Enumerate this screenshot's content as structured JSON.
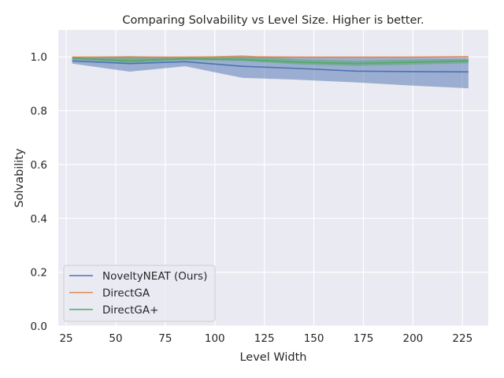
{
  "chart_data": {
    "type": "line",
    "title": "Comparing Solvability  vs Level Size. Higher is better.",
    "xlabel": "Level Width",
    "ylabel": "Solvability",
    "xlim": [
      21,
      238
    ],
    "ylim": [
      0,
      1.1
    ],
    "xticks": [
      25,
      50,
      75,
      100,
      125,
      150,
      175,
      200,
      225
    ],
    "yticks": [
      0.0,
      0.2,
      0.4,
      0.6,
      0.8,
      1.0
    ],
    "grid": true,
    "legend_position": "lower-left",
    "x": [
      28,
      57,
      85,
      114,
      142,
      171,
      200,
      228
    ],
    "series": [
      {
        "name": "NoveltyNEAT (Ours)",
        "color": "#4c72b0",
        "values": [
          0.985,
          0.975,
          0.982,
          0.965,
          0.957,
          0.947,
          0.945,
          0.944
        ],
        "band_lower": [
          0.975,
          0.945,
          0.965,
          0.922,
          0.915,
          0.905,
          0.893,
          0.883
        ],
        "band_upper": [
          0.995,
          0.998,
          0.998,
          0.999,
          0.998,
          0.996,
          0.996,
          0.996
        ]
      },
      {
        "name": "DirectGA",
        "color": "#dd8452",
        "values": [
          0.999,
          0.999,
          0.999,
          1.0,
          0.999,
          0.999,
          0.999,
          1.0
        ],
        "band_lower": [
          0.997,
          0.996,
          0.997,
          0.998,
          0.997,
          0.997,
          0.997,
          0.998
        ],
        "band_upper": [
          1.0,
          1.0,
          1.0,
          1.001,
          1.0,
          1.0,
          1.0,
          1.001
        ]
      },
      {
        "name": "DirectGA+",
        "color": "#55a868",
        "values": [
          0.995,
          0.985,
          0.993,
          0.99,
          0.98,
          0.975,
          0.98,
          0.985
        ],
        "band_lower": [
          0.99,
          0.978,
          0.988,
          0.984,
          0.972,
          0.966,
          0.971,
          0.976
        ],
        "band_upper": [
          0.999,
          1.003,
          0.998,
          1.006,
          0.991,
          0.986,
          0.99,
          0.993
        ]
      }
    ]
  }
}
